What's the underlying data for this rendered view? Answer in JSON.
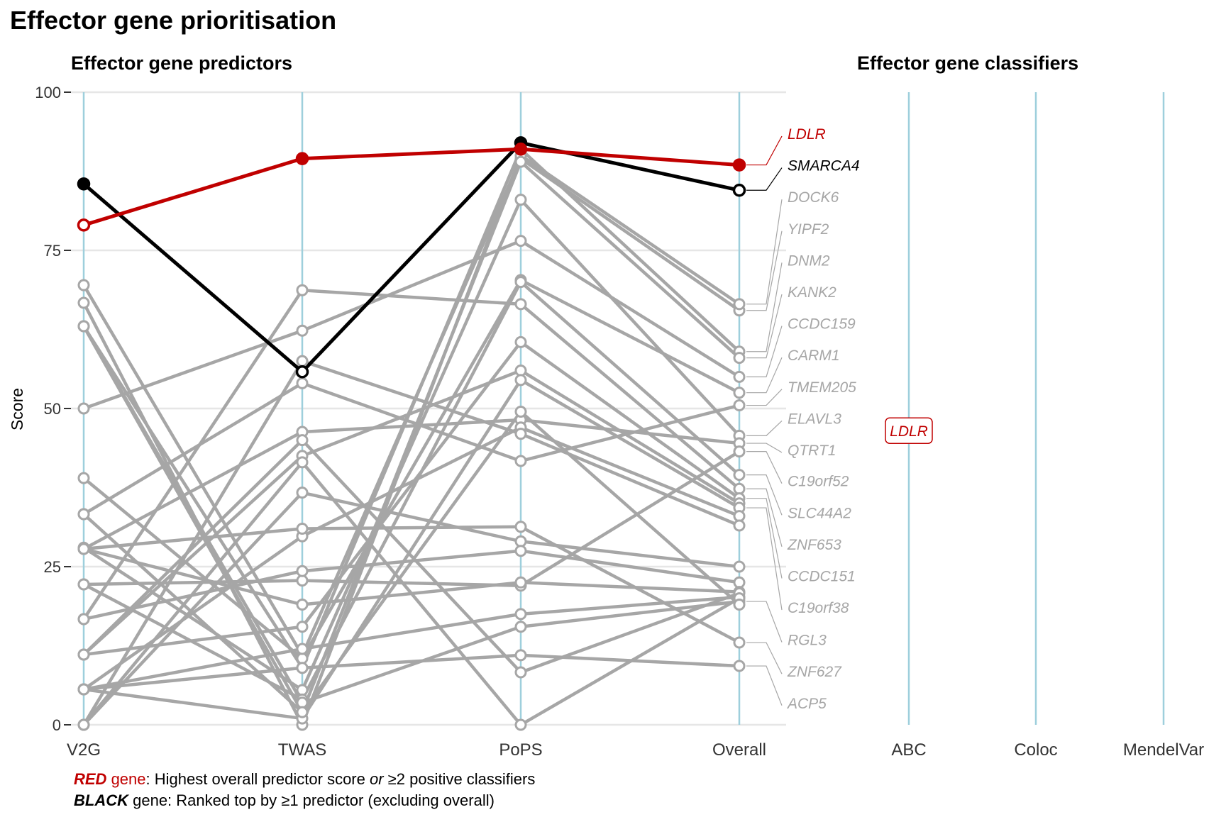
{
  "title": "Effector gene prioritisation",
  "panels": {
    "predictors_title": "Effector gene predictors",
    "classifiers_title": "Effector gene classifiers"
  },
  "legend": {
    "red_word": "RED",
    "red_gene": " gene",
    "red_text": ": Highest overall predictor score ",
    "red_or": "or",
    "red_text2": " ≥2 positive classifiers",
    "black_word": "BLACK",
    "black_text": " gene: Ranked top by ≥1 predictor (excluding overall)"
  },
  "colors": {
    "red": "#c00000",
    "black": "#000000",
    "grey": "#a6a6a6",
    "axis": "#9ecfdc",
    "grid": "#e6e6e6"
  },
  "chart_data": {
    "type": "line",
    "ylabel": "Score",
    "ylim": [
      0,
      100
    ],
    "yticks": [
      0,
      25,
      50,
      75,
      100
    ],
    "x": [
      "V2G",
      "TWAS",
      "PoPS",
      "Overall"
    ],
    "classifier_columns": [
      "ABC",
      "Coloc",
      "MendelVar"
    ],
    "highlighted": [
      {
        "name": "LDLR",
        "color": "red",
        "values": [
          79,
          89.5,
          91,
          88.5
        ],
        "filled": [
          false,
          true,
          true,
          true
        ]
      },
      {
        "name": "SMARCA4",
        "color": "black",
        "values": [
          85.5,
          55.8,
          92,
          84.5
        ],
        "filled": [
          true,
          false,
          true,
          false
        ]
      }
    ],
    "background_lines": [
      [
        69.5,
        11,
        89.5,
        65.5
      ],
      [
        66.7,
        0,
        90,
        66.5
      ],
      [
        63,
        9,
        91,
        59
      ],
      [
        63,
        2,
        89,
        58
      ],
      [
        50,
        62.3,
        76.5,
        55
      ],
      [
        39,
        10.5,
        70.3,
        52.5
      ],
      [
        33.3,
        54,
        41.7,
        50.5
      ],
      [
        28,
        5.5,
        83,
        45.7
      ],
      [
        27.8,
        46.3,
        48.2,
        44.5
      ],
      [
        22.2,
        22.8,
        22,
        43.2
      ],
      [
        22.2,
        4,
        70,
        39.5
      ],
      [
        16.7,
        68.7,
        66.5,
        37.3
      ],
      [
        11.1,
        15.5,
        60.5,
        35.8
      ],
      [
        11.1,
        42.5,
        56,
        35
      ],
      [
        5.6,
        1,
        54.5,
        34.3
      ],
      [
        5.6,
        29.8,
        47,
        33
      ],
      [
        0,
        57.5,
        46,
        31.5
      ],
      [
        0,
        36.7,
        29,
        25
      ],
      [
        16.7,
        24.3,
        27.5,
        22.5
      ],
      [
        27.8,
        19,
        22.5,
        21
      ],
      [
        5.6,
        12,
        17.5,
        20.2
      ],
      [
        63,
        3.5,
        15.5,
        19.5
      ],
      [
        27.8,
        31,
        31.3,
        13
      ],
      [
        11.1,
        45,
        8.3,
        20.8
      ],
      [
        5.6,
        9,
        11,
        9.3
      ],
      [
        0,
        41.5,
        0,
        20
      ],
      [
        33.3,
        2,
        49.5,
        19
      ]
    ],
    "overall_labels": [
      {
        "name": "LDLR",
        "color": "red",
        "value": 88.5,
        "label_y": 93.5
      },
      {
        "name": "SMARCA4",
        "color": "black",
        "value": 84.5,
        "label_y": 88.5
      },
      {
        "name": "DOCK6",
        "color": "grey",
        "value": 66.5,
        "label_y": 83.5
      },
      {
        "name": "YIPF2",
        "color": "grey",
        "value": 65.5,
        "label_y": 78.5
      },
      {
        "name": "DNM2",
        "color": "grey",
        "value": 59,
        "label_y": 73.5
      },
      {
        "name": "KANK2",
        "color": "grey",
        "value": 58,
        "label_y": 68.5
      },
      {
        "name": "CCDC159",
        "color": "grey",
        "value": 55,
        "label_y": 63.5
      },
      {
        "name": "CARM1",
        "color": "grey",
        "value": 52.5,
        "label_y": 58.5
      },
      {
        "name": "TMEM205",
        "color": "grey",
        "value": 50.5,
        "label_y": 53.5
      },
      {
        "name": "ELAVL3",
        "color": "grey",
        "value": 45.7,
        "label_y": 48.5
      },
      {
        "name": "QTRT1",
        "color": "grey",
        "value": 44.5,
        "label_y": 43.5
      },
      {
        "name": "C19orf52",
        "color": "grey",
        "value": 43.2,
        "label_y": 38.6
      },
      {
        "name": "SLC44A2",
        "color": "grey",
        "value": 39.5,
        "label_y": 33.6
      },
      {
        "name": "ZNF653",
        "color": "grey",
        "value": 37.3,
        "label_y": 28.6
      },
      {
        "name": "CCDC151",
        "color": "grey",
        "value": 35.8,
        "label_y": 23.6
      },
      {
        "name": "C19orf38",
        "color": "grey",
        "value": 34.3,
        "label_y": 18.6
      },
      {
        "name": "RGL3",
        "color": "grey",
        "value": 19.5,
        "label_y": 13.5
      },
      {
        "name": "ZNF627",
        "color": "grey",
        "value": 13,
        "label_y": 8.5
      },
      {
        "name": "ACP5",
        "color": "grey",
        "value": 9.3,
        "label_y": 3.5
      }
    ],
    "classifier_hits": [
      {
        "column": "ABC",
        "gene": "LDLR",
        "color": "red",
        "value": 46.5
      }
    ]
  }
}
